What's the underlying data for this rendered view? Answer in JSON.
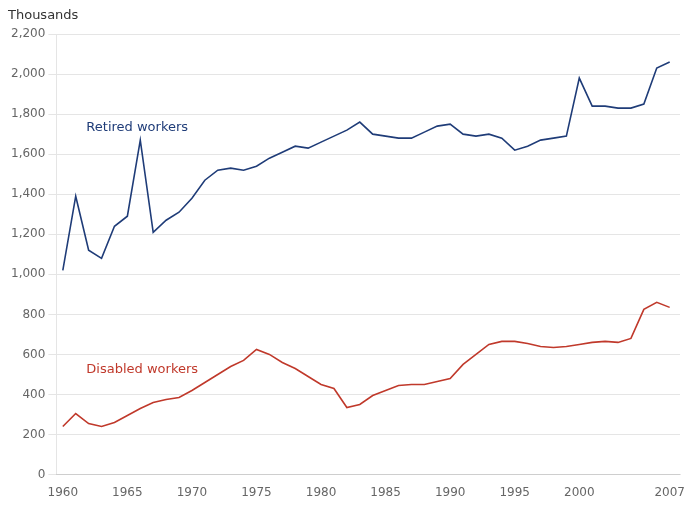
{
  "chart_data": {
    "type": "line",
    "y_label": "Thousands",
    "x": [
      1960,
      1961,
      1962,
      1963,
      1964,
      1965,
      1966,
      1967,
      1968,
      1969,
      1970,
      1971,
      1972,
      1973,
      1974,
      1975,
      1976,
      1977,
      1978,
      1979,
      1980,
      1981,
      1982,
      1983,
      1984,
      1985,
      1986,
      1987,
      1988,
      1989,
      1990,
      1991,
      1992,
      1993,
      1994,
      1995,
      1996,
      1997,
      1998,
      1999,
      2000,
      2001,
      2002,
      2003,
      2004,
      2005,
      2006,
      2007
    ],
    "series": [
      {
        "name": "Retired workers",
        "color": "#1f3c78",
        "values": [
          1020,
          1390,
          1120,
          1080,
          1240,
          1290,
          1670,
          1210,
          1270,
          1310,
          1380,
          1470,
          1520,
          1530,
          1520,
          1540,
          1580,
          1610,
          1640,
          1630,
          1660,
          1690,
          1720,
          1760,
          1700,
          1690,
          1680,
          1680,
          1710,
          1740,
          1750,
          1700,
          1690,
          1700,
          1680,
          1620,
          1640,
          1670,
          1680,
          1690,
          1980,
          1840,
          1840,
          1830,
          1830,
          1850,
          2030,
          2060
        ]
      },
      {
        "name": "Disabled workers",
        "color": "#c0392b",
        "values": [
          240,
          305,
          255,
          240,
          260,
          295,
          330,
          360,
          375,
          385,
          420,
          460,
          500,
          540,
          570,
          625,
          600,
          560,
          530,
          490,
          450,
          430,
          335,
          350,
          395,
          420,
          445,
          450,
          450,
          465,
          480,
          550,
          600,
          650,
          665,
          665,
          655,
          640,
          635,
          640,
          650,
          660,
          665,
          660,
          680,
          825,
          860,
          835
        ]
      }
    ],
    "xlim": [
      1959.5,
      2007.8
    ],
    "xticks": [
      1960,
      1965,
      1970,
      1975,
      1980,
      1985,
      1990,
      1995,
      2000,
      2007
    ],
    "ylim": [
      0,
      2200
    ],
    "yticks": [
      0,
      200,
      400,
      600,
      800,
      {
        "value": 1000,
        "label": "1,000"
      },
      {
        "value": 1200,
        "label": "1,200"
      },
      {
        "value": 1400,
        "label": "1,400"
      },
      {
        "value": 1600,
        "label": "1,600"
      },
      {
        "value": 1800,
        "label": "1,800"
      },
      {
        "value": 2000,
        "label": "2,000"
      },
      {
        "value": 2200,
        "label": "2,200"
      }
    ],
    "grid": "y"
  }
}
